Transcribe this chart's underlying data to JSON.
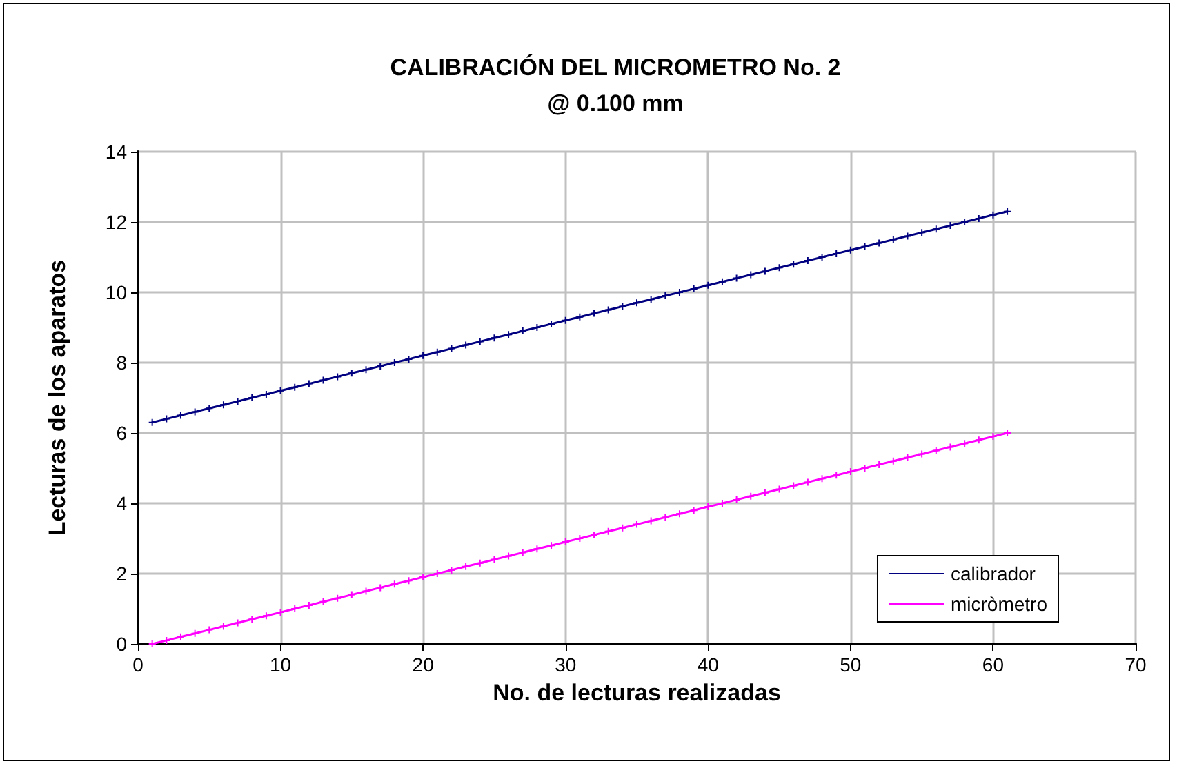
{
  "chart_data": {
    "type": "line",
    "title": "CALIBRACIÓN DEL MICROMETRO No. 2\n@ 0.100 mm",
    "xlabel": "No. de lecturas realizadas",
    "ylabel": "Lecturas de los aparatos",
    "x": [
      1,
      2,
      3,
      4,
      5,
      6,
      7,
      8,
      9,
      10,
      11,
      12,
      13,
      14,
      15,
      16,
      17,
      18,
      19,
      20,
      21,
      22,
      23,
      24,
      25,
      26,
      27,
      28,
      29,
      30,
      31,
      32,
      33,
      34,
      35,
      36,
      37,
      38,
      39,
      40,
      41,
      42,
      43,
      44,
      45,
      46,
      47,
      48,
      49,
      50,
      51,
      52,
      53,
      54,
      55,
      56,
      57,
      58,
      59,
      60,
      61
    ],
    "series": [
      {
        "name": "calibrador",
        "color": "#000080",
        "values": [
          6.3,
          6.4,
          6.5,
          6.6,
          6.7,
          6.8,
          6.9,
          7.0,
          7.1,
          7.2,
          7.3,
          7.4,
          7.5,
          7.6,
          7.7,
          7.8,
          7.9,
          8.0,
          8.1,
          8.2,
          8.3,
          8.4,
          8.5,
          8.6,
          8.7,
          8.8,
          8.9,
          9.0,
          9.1,
          9.2,
          9.3,
          9.4,
          9.5,
          9.6,
          9.7,
          9.8,
          9.9,
          10.0,
          10.1,
          10.2,
          10.3,
          10.4,
          10.5,
          10.6,
          10.7,
          10.8,
          10.9,
          11.0,
          11.1,
          11.2,
          11.3,
          11.4,
          11.5,
          11.6,
          11.7,
          11.8,
          11.9,
          12.0,
          12.1,
          12.2,
          12.3
        ]
      },
      {
        "name": "micròmetro",
        "color": "#ff00ff",
        "values": [
          0.0,
          0.1,
          0.2,
          0.3,
          0.4,
          0.5,
          0.6,
          0.7,
          0.8,
          0.9,
          1.0,
          1.1,
          1.2,
          1.3,
          1.4,
          1.5,
          1.6,
          1.7,
          1.8,
          1.9,
          2.0,
          2.1,
          2.2,
          2.3,
          2.4,
          2.5,
          2.6,
          2.7,
          2.8,
          2.9,
          3.0,
          3.1,
          3.2,
          3.3,
          3.4,
          3.5,
          3.6,
          3.7,
          3.8,
          3.9,
          4.0,
          4.1,
          4.2,
          4.3,
          4.4,
          4.5,
          4.6,
          4.7,
          4.8,
          4.9,
          5.0,
          5.1,
          5.2,
          5.3,
          5.4,
          5.5,
          5.6,
          5.7,
          5.8,
          5.9,
          6.0
        ]
      }
    ],
    "xlim": [
      0,
      70
    ],
    "xticks": [
      0,
      10,
      20,
      30,
      40,
      50,
      60,
      70
    ],
    "ylim": [
      0,
      14
    ],
    "yticks": [
      0,
      2,
      4,
      6,
      8,
      10,
      12,
      14
    ],
    "grid": true,
    "legend": "bottom right",
    "marker": "cross",
    "line_style": "solid"
  }
}
